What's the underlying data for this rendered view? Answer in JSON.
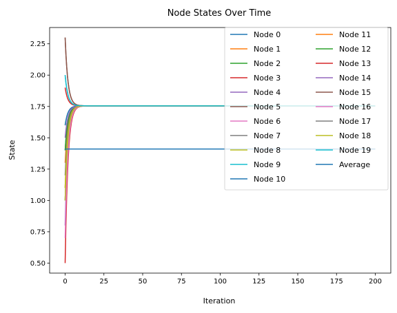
{
  "chart_data": {
    "type": "line",
    "title": "Node States Over Time",
    "xlabel": "Iteration",
    "ylabel": "State",
    "xlim": [
      -10,
      210
    ],
    "ylim": [
      0.42,
      2.38
    ],
    "xticks": [
      0,
      25,
      50,
      75,
      100,
      125,
      150,
      175,
      200
    ],
    "yticks": [
      0.5,
      0.75,
      1.0,
      1.25,
      1.5,
      1.75,
      2.0,
      2.25
    ],
    "ytick_labels": [
      "0.50",
      "0.75",
      "1.00",
      "1.25",
      "1.50",
      "1.75",
      "2.00",
      "2.25"
    ],
    "grid": false,
    "legend_placement": "top-right",
    "legend_columns": 2,
    "steady_state": 1.755,
    "series": [
      {
        "name": "Node 0",
        "color": "#1f77b4",
        "initial": 1.4
      },
      {
        "name": "Node 1",
        "color": "#ff7f0e",
        "initial": 1.1
      },
      {
        "name": "Node 2",
        "color": "#2ca02c",
        "initial": 1.0
      },
      {
        "name": "Node 3",
        "color": "#d62728",
        "initial": 1.9
      },
      {
        "name": "Node 4",
        "color": "#9467bd",
        "initial": 0.8
      },
      {
        "name": "Node 5",
        "color": "#8c564b",
        "initial": 2.3
      },
      {
        "name": "Node 6",
        "color": "#e377c2",
        "initial": 1.0
      },
      {
        "name": "Node 7",
        "color": "#7f7f7f",
        "initial": 1.6
      },
      {
        "name": "Node 8",
        "color": "#bcbd22",
        "initial": 1.0
      },
      {
        "name": "Node 9",
        "color": "#17becf",
        "initial": 2.0
      },
      {
        "name": "Node 10",
        "color": "#1f77b4",
        "initial": 1.6
      },
      {
        "name": "Node 11",
        "color": "#ff7f0e",
        "initial": 1.3
      },
      {
        "name": "Node 12",
        "color": "#2ca02c",
        "initial": 1.4
      },
      {
        "name": "Node 13",
        "color": "#d62728",
        "initial": 0.5
      },
      {
        "name": "Node 14",
        "color": "#9467bd",
        "initial": 1.5
      },
      {
        "name": "Node 15",
        "color": "#8c564b",
        "initial": 2.3
      },
      {
        "name": "Node 16",
        "color": "#e377c2",
        "initial": 0.7
      },
      {
        "name": "Node 17",
        "color": "#7f7f7f",
        "initial": 1.2
      },
      {
        "name": "Node 18",
        "color": "#bcbd22",
        "initial": 1.1
      },
      {
        "name": "Node 19",
        "color": "#17becf",
        "initial": 2.0
      },
      {
        "name": "Average",
        "color": "#1f77b4",
        "initial": 1.41,
        "constant": true
      }
    ]
  }
}
